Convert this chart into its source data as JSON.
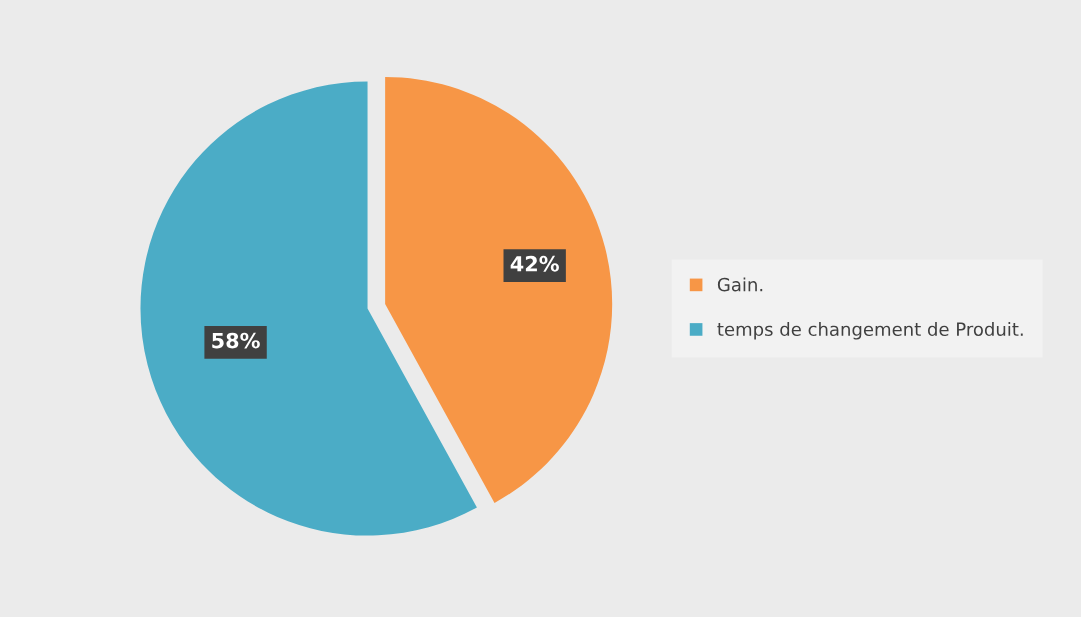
{
  "chart_data": {
    "type": "pie",
    "categories": [
      "Gain.",
      "temps de changement de Produit."
    ],
    "values": [
      42,
      58
    ],
    "colors": [
      "#f79646",
      "#4bacc6"
    ],
    "value_labels": [
      "42%",
      "58%"
    ],
    "legend": "right"
  }
}
